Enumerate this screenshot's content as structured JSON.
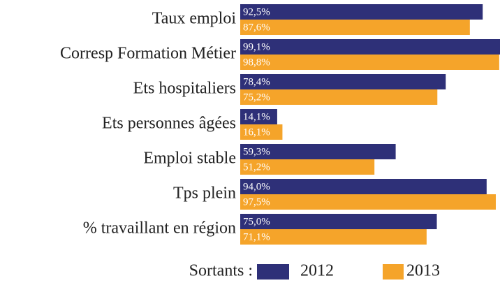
{
  "chart_data": {
    "type": "bar",
    "orientation": "horizontal",
    "categories": [
      "Taux emploi",
      "Corresp Formation Métier",
      "Ets hospitaliers",
      "Ets personnes âgées",
      "Emploi stable",
      "Tps plein",
      "% travaillant en région"
    ],
    "legend_title": "Sortants :",
    "series": [
      {
        "name": "2012",
        "color": "#2e3078",
        "values": [
          92.5,
          99.1,
          78.4,
          14.1,
          59.3,
          94.0,
          75.0
        ],
        "value_labels": [
          "92,5%",
          "99,1%",
          "78,4%",
          "14,1%",
          "59,3%",
          "94,0%",
          "75,0%"
        ]
      },
      {
        "name": "2013",
        "color": "#f5a42a",
        "values": [
          87.6,
          98.8,
          75.2,
          16.1,
          51.2,
          97.5,
          71.1
        ],
        "value_labels": [
          "87,6%",
          "98,8%",
          "75,2%",
          "16,1%",
          "51,2%",
          "97,5%",
          "71,1%"
        ]
      }
    ]
  }
}
